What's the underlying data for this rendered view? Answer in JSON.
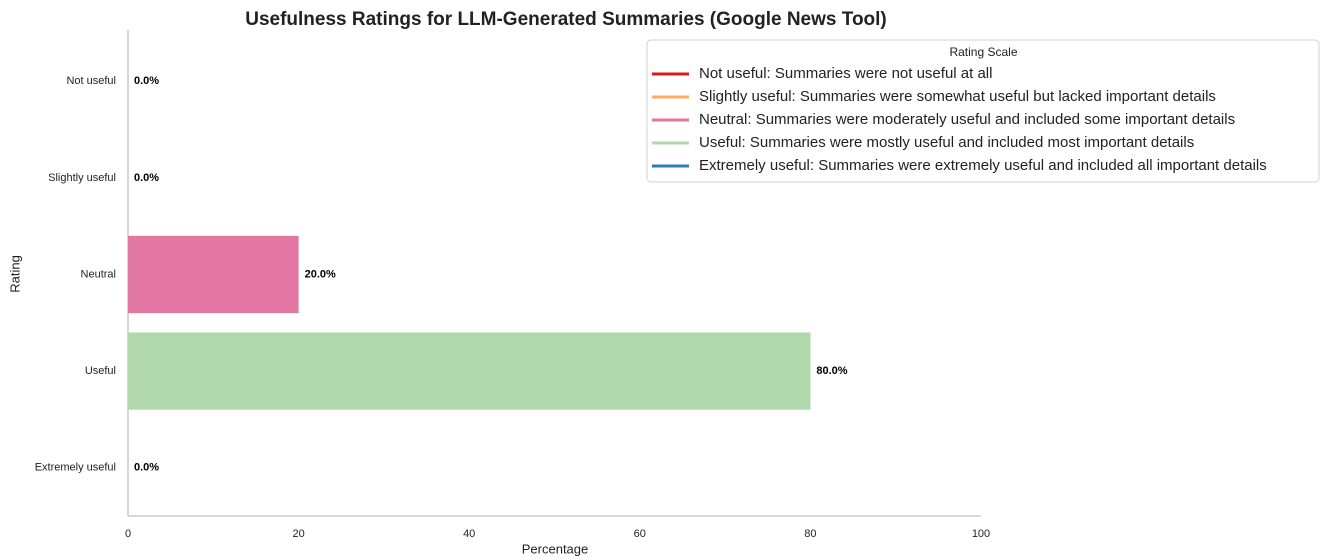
{
  "chart_data": {
    "type": "barh",
    "title": "Usefulness Ratings for LLM-Generated Summaries (Google News Tool)",
    "xlabel": "Percentage",
    "ylabel": "Rating",
    "categories": [
      "Not useful",
      "Slightly useful",
      "Neutral",
      "Useful",
      "Extremely useful"
    ],
    "values": [
      0,
      0,
      20,
      80,
      0
    ],
    "value_labels": [
      "0.0%",
      "0.0%",
      "20.0%",
      "80.0%",
      "0.0%"
    ],
    "colors": [
      "#d7191c",
      "#fdae61",
      "#e377a4",
      "#b0d8ac",
      "#2c7bb6"
    ],
    "xlim": [
      0,
      100
    ],
    "xticks": [
      0,
      20,
      40,
      60,
      80,
      100
    ],
    "grid": false,
    "legend": {
      "title": "Rating Scale",
      "position": "upper right",
      "entries": [
        "Not useful: Summaries were not useful at all",
        "Slightly useful: Summaries were somewhat useful but lacked important details",
        "Neutral: Summaries were moderately useful and included some important details",
        "Useful: Summaries were mostly useful and included most important details",
        "Extremely useful: Summaries were extremely useful and included all important details"
      ]
    }
  }
}
